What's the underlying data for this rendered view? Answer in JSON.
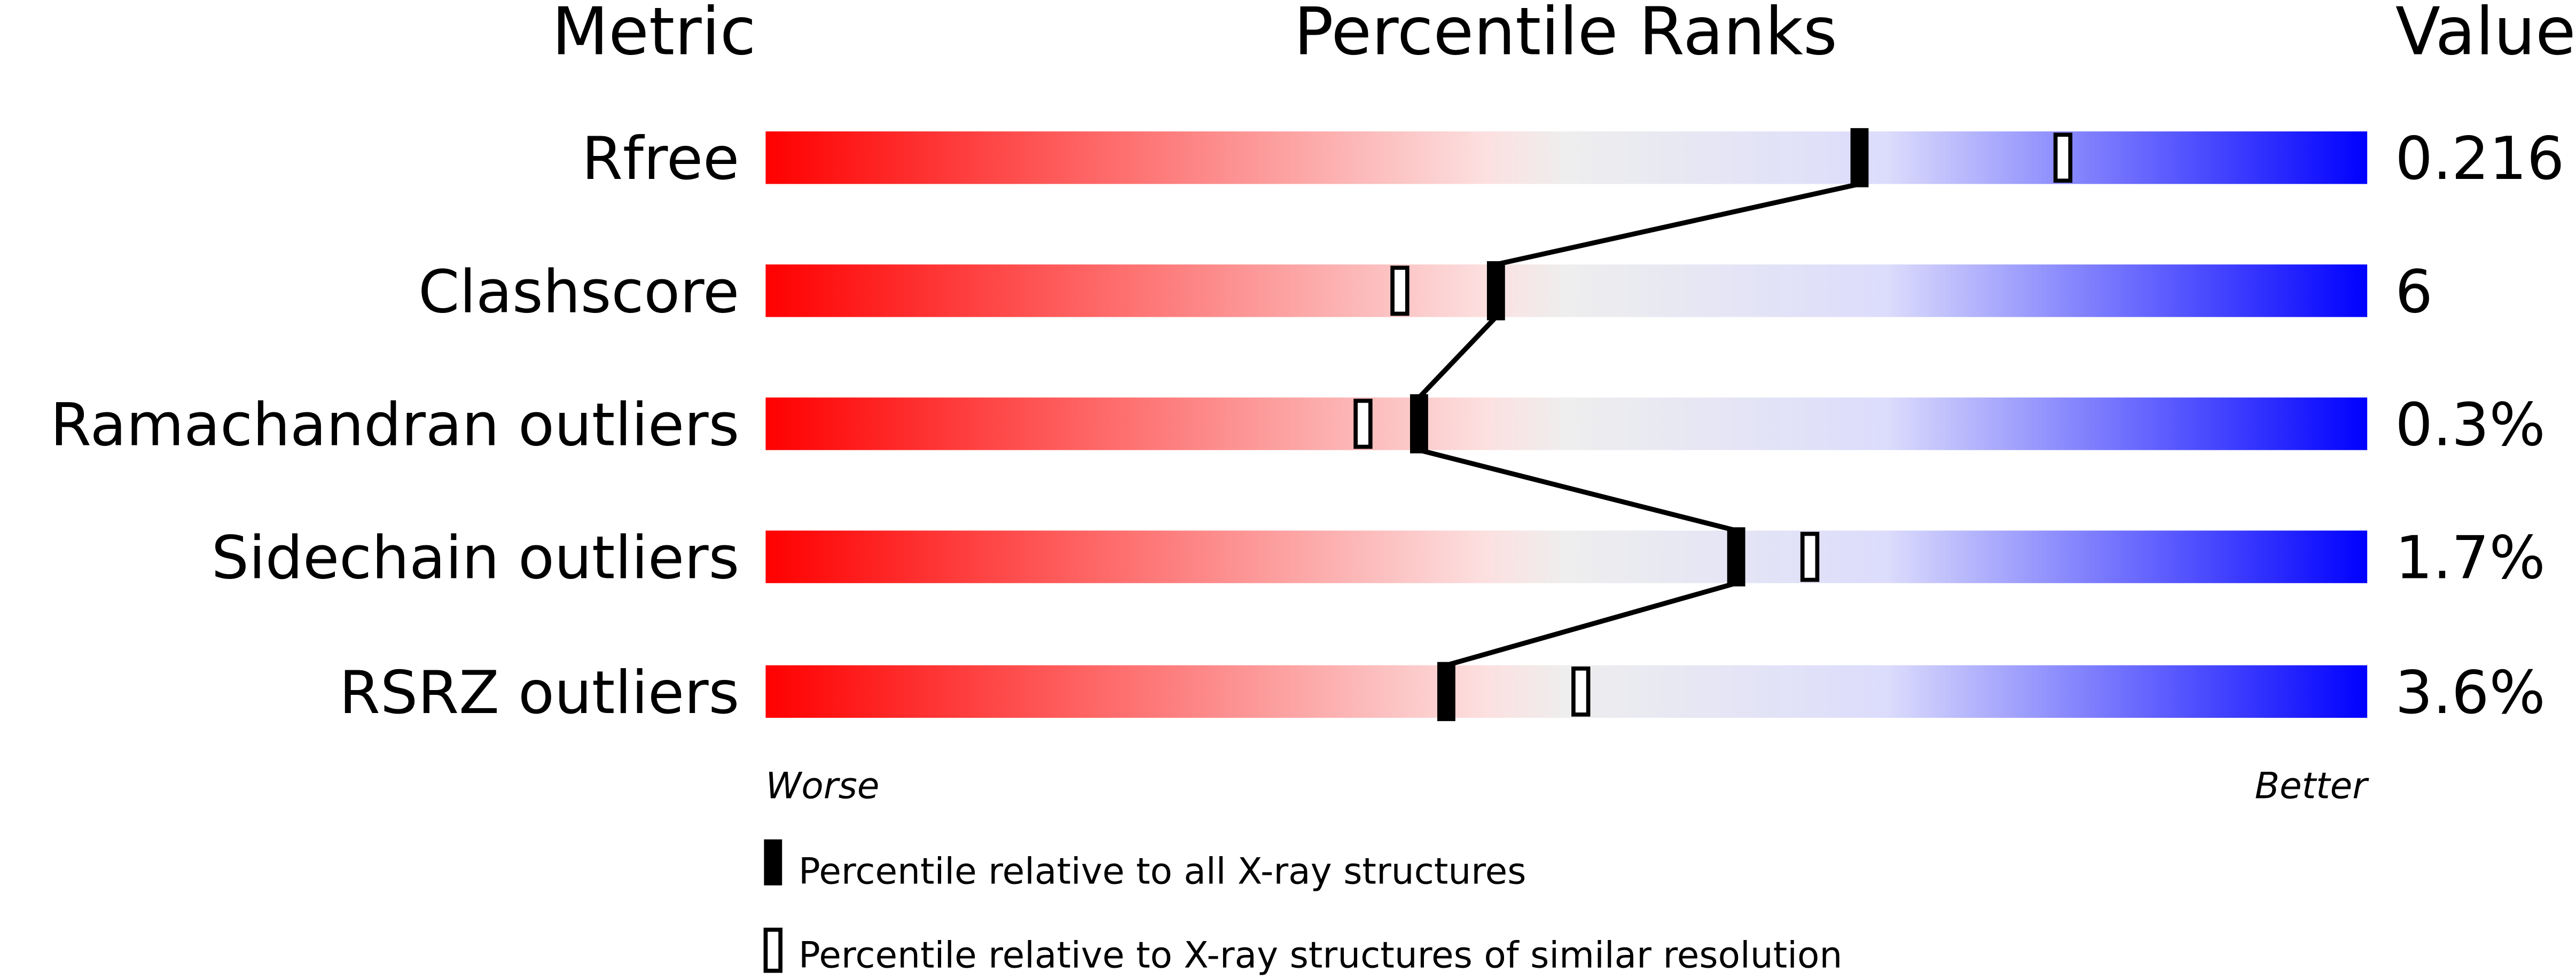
{
  "chart_data": {
    "type": "bar",
    "headers": {
      "metric": "Metric",
      "ranks": "Percentile Ranks",
      "value": "Value"
    },
    "categories": [
      "Rfree",
      "Clashscore",
      "Ramachandran outliers",
      "Sidechain outliers",
      "RSRZ outliers"
    ],
    "values_text": [
      "0.216",
      "6",
      "0.3%",
      "1.7%",
      "3.6%"
    ],
    "series": [
      {
        "name": "Percentile relative to all X-ray structures",
        "marker": "filled",
        "values": [
          68.3,
          45.6,
          40.8,
          60.6,
          42.5
        ]
      },
      {
        "name": "Percentile relative to X-ray structures of similar resolution",
        "marker": "open",
        "values": [
          81.0,
          39.6,
          37.3,
          65.2,
          50.9
        ]
      }
    ],
    "xlim": [
      0,
      100
    ],
    "axis_left_label": "Worse",
    "axis_right_label": "Better",
    "legend_placement": "bottom",
    "gradient_colors": [
      "#ff0000",
      "#fce0e0",
      "#eeeeee",
      "#dcdcfc",
      "#0000ff"
    ]
  }
}
